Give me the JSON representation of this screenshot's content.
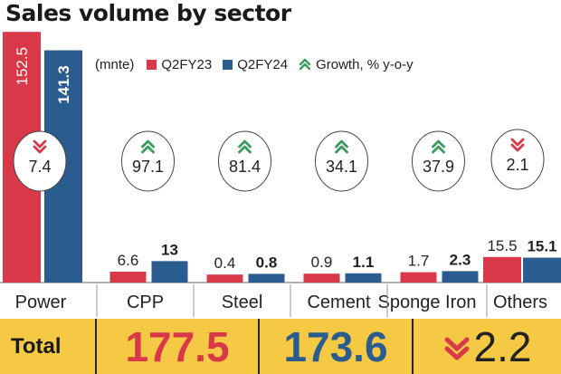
{
  "chart_data": {
    "type": "bar",
    "title": "Sales volume by sector",
    "unit_label": "(mnte)",
    "categories": [
      "Power",
      "CPP",
      "Steel",
      "Cement",
      "Sponge Iron",
      "Others"
    ],
    "series": [
      {
        "name": "Q2FY23",
        "color": "#d93848",
        "values": [
          152.5,
          6.6,
          0.4,
          0.9,
          1.7,
          15.5
        ],
        "labels": [
          "152.5",
          "6.6",
          "0.4",
          "0.9",
          "1.7",
          "15.5"
        ]
      },
      {
        "name": "Q2FY24",
        "color": "#2b5c8f",
        "values": [
          141.3,
          13,
          0.8,
          1.1,
          2.3,
          15.1
        ],
        "labels": [
          "141.3",
          "13",
          "0.8",
          "1.1",
          "2.3",
          "15.1"
        ]
      }
    ],
    "growth": {
      "name": "Growth, % y-o-y",
      "values": [
        "7.4",
        "97.1",
        "81.4",
        "34.1",
        "37.9",
        "2.1"
      ],
      "direction": [
        "down",
        "up",
        "up",
        "up",
        "up",
        "down"
      ],
      "up_color": "#3a9b5c",
      "down_color": "#d93848"
    },
    "totals": {
      "label": "Total",
      "q2fy23": "177.5",
      "q2fy24": "173.6",
      "growth": "2.2",
      "growth_direction": "down"
    },
    "colors": {
      "accent_band": "#f6c945",
      "axis": "#555555"
    }
  }
}
